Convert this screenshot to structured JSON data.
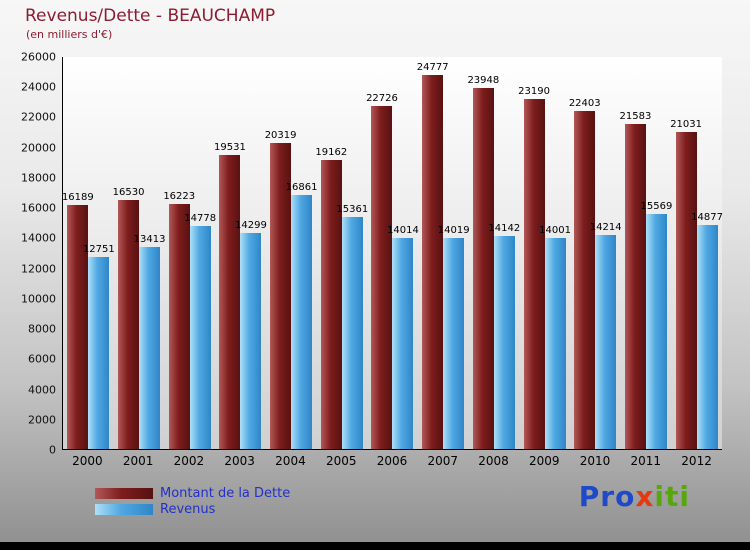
{
  "chart_data": {
    "type": "bar",
    "title": "Revenus/Dette - BEAUCHAMP",
    "subtitle": "(en milliers d'€)",
    "categories": [
      "2000",
      "2001",
      "2002",
      "2003",
      "2004",
      "2005",
      "2006",
      "2007",
      "2008",
      "2009",
      "2010",
      "2011",
      "2012"
    ],
    "series": [
      {
        "name": "Montant de la Dette",
        "color": "#7e1d1d",
        "values": [
          16189,
          16530,
          16223,
          19531,
          20319,
          19162,
          22726,
          24777,
          23948,
          23190,
          22403,
          21583,
          21031
        ]
      },
      {
        "name": "Revenus",
        "color": "#4fa8e2",
        "values": [
          12751,
          13413,
          14778,
          14299,
          16861,
          15361,
          14014,
          14019,
          14142,
          14001,
          14214,
          15569,
          14877
        ]
      }
    ],
    "ylim": [
      0,
      26000
    ],
    "ytick_step": 2000,
    "grid": false,
    "legend_position": "bottom-left"
  },
  "legend": {
    "dette_label": "Montant de la Dette",
    "revenus_label": "Revenus"
  },
  "logo": {
    "segments": [
      {
        "text": "Pro",
        "color": "#1f49c8"
      },
      {
        "text": "x",
        "color": "#e8380d"
      },
      {
        "text": "iti",
        "color": "#56a80a"
      }
    ]
  }
}
